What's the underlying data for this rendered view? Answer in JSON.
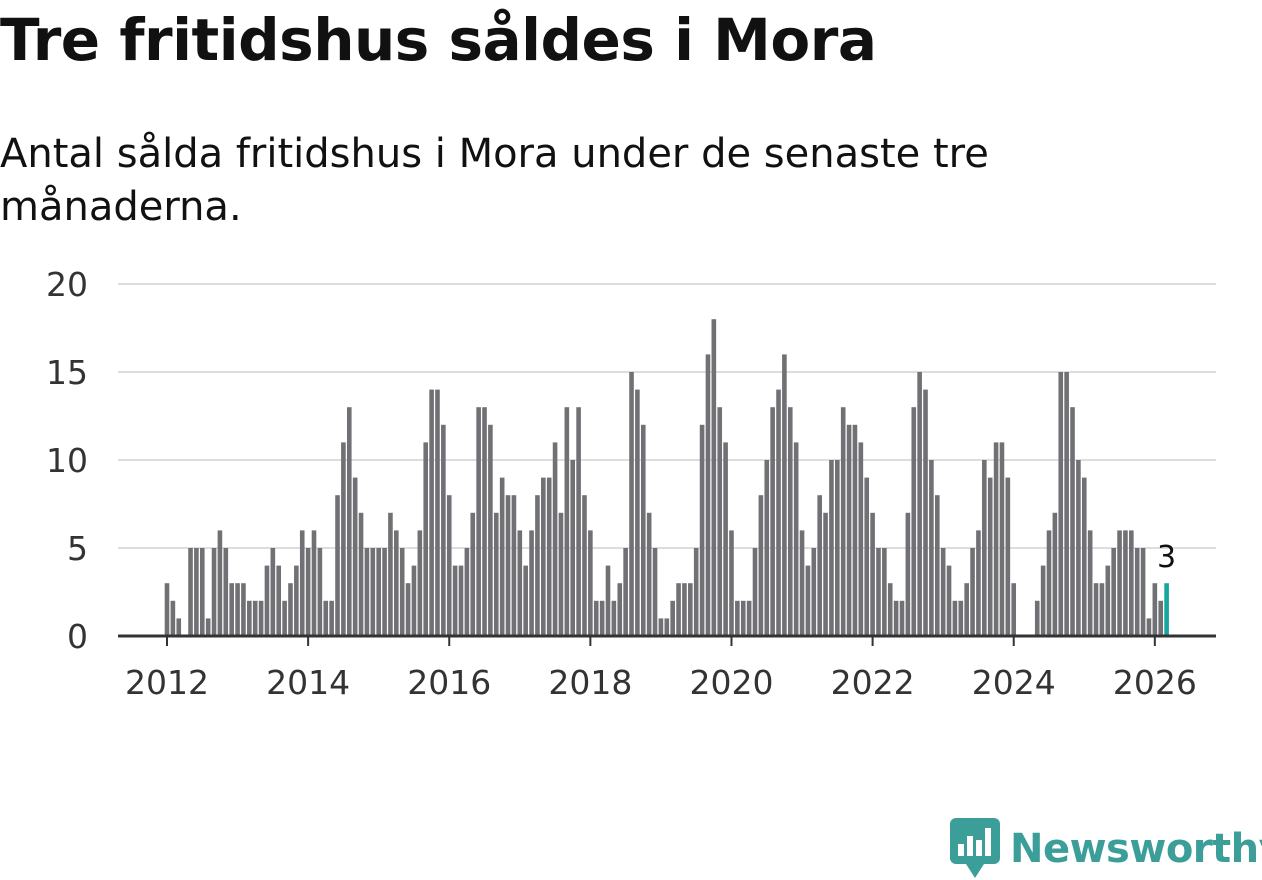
{
  "title": "Tre fritidshus såldes i Mora",
  "subtitle": "Antal sålda fritidshus i Mora under de senaste tre månaderna.",
  "brand": {
    "name": "Newsworthy",
    "color": "#3b9e98",
    "icon": "newsworthy-logo-icon"
  },
  "colors": {
    "bar": "#707075",
    "highlight": "#16a69d",
    "grid": "#dddddd",
    "axis": "#333333",
    "text": "#333333"
  },
  "chart_data": {
    "type": "bar",
    "title": "Tre fritidshus såldes i Mora",
    "subtitle": "Antal sålda fritidshus i Mora under de senaste tre månaderna.",
    "xlabel": "",
    "ylabel": "",
    "ylim": [
      0,
      20
    ],
    "yticks": [
      "0",
      "5",
      "10",
      "15",
      "20"
    ],
    "xticks": [
      "2012",
      "2014",
      "2016",
      "2018",
      "2020",
      "2022",
      "2024",
      "2026"
    ],
    "grid": true,
    "legend": "none",
    "x_start": "2012-01",
    "x_end": "2026-02",
    "highlight_label": "3",
    "values": [
      3,
      2,
      1,
      0,
      5,
      5,
      5,
      1,
      5,
      6,
      5,
      3,
      3,
      3,
      2,
      2,
      2,
      4,
      5,
      4,
      2,
      3,
      4,
      6,
      5,
      6,
      5,
      2,
      2,
      8,
      11,
      13,
      9,
      7,
      5,
      5,
      5,
      5,
      7,
      6,
      5,
      3,
      4,
      6,
      11,
      14,
      14,
      12,
      8,
      4,
      4,
      5,
      7,
      13,
      13,
      12,
      7,
      9,
      8,
      8,
      6,
      4,
      6,
      8,
      9,
      9,
      11,
      7,
      13,
      10,
      13,
      8,
      6,
      2,
      2,
      4,
      2,
      3,
      5,
      15,
      14,
      12,
      7,
      5,
      1,
      1,
      2,
      3,
      3,
      3,
      5,
      12,
      16,
      18,
      13,
      11,
      6,
      2,
      2,
      2,
      5,
      8,
      10,
      13,
      14,
      16,
      13,
      11,
      6,
      4,
      5,
      8,
      7,
      10,
      10,
      13,
      12,
      12,
      11,
      9,
      7,
      5,
      5,
      3,
      2,
      2,
      7,
      13,
      15,
      14,
      10,
      8,
      5,
      4,
      2,
      2,
      3,
      5,
      6,
      10,
      9,
      11,
      11,
      9,
      3,
      0,
      0,
      0,
      2,
      4,
      6,
      7,
      15,
      15,
      13,
      10,
      9,
      6,
      3,
      3,
      4,
      5,
      6,
      6,
      6,
      5,
      5,
      1,
      3,
      2,
      3
    ]
  }
}
